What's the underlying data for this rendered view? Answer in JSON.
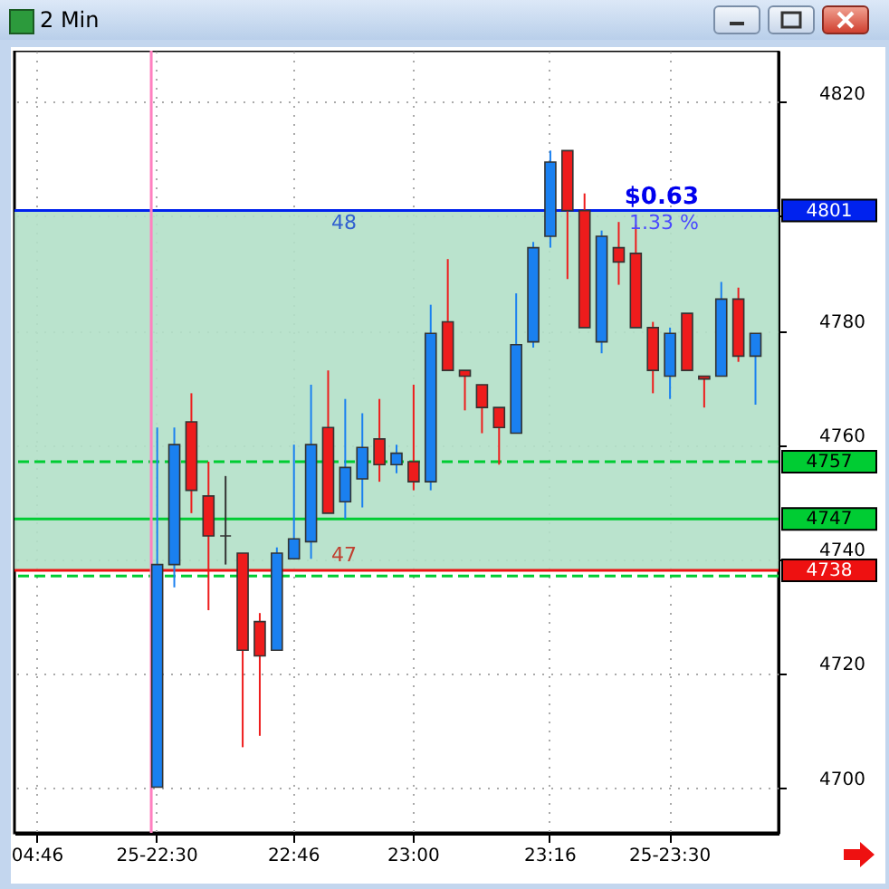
{
  "chart_data": {
    "type": "candlestick",
    "title": "2 Min",
    "categories": [
      "04:46",
      null,
      null,
      null,
      null,
      null,
      null,
      "25-22:30",
      null,
      null,
      null,
      null,
      null,
      null,
      null,
      "22:46",
      null,
      null,
      null,
      null,
      null,
      null,
      "23:00",
      null,
      null,
      null,
      null,
      null,
      null,
      null,
      "23:16",
      null,
      null,
      null,
      null,
      null,
      null,
      "25-23:30",
      null,
      null,
      null,
      null,
      null
    ],
    "ohlc": [
      null,
      null,
      null,
      null,
      null,
      null,
      null,
      [
        4700,
        4763,
        4700,
        4739
      ],
      [
        4739,
        4763,
        4735,
        4760
      ],
      [
        4764,
        4769,
        4748,
        4752
      ],
      [
        4751,
        4757,
        4731,
        4744
      ],
      [
        4744,
        4754.5,
        4739,
        4744
      ],
      [
        4741,
        4741,
        4707,
        4724
      ],
      [
        4729,
        4730.5,
        4709,
        4723
      ],
      [
        4724,
        4742,
        4724,
        4741
      ],
      [
        4740,
        4760,
        4740,
        4743.5
      ],
      [
        4743,
        4770.5,
        4740,
        4760
      ],
      [
        4763,
        4773,
        4748,
        4748
      ],
      [
        4750,
        4768,
        4747,
        4756
      ],
      [
        4754,
        4765.5,
        4749,
        4759.5
      ],
      [
        4761,
        4768,
        4753.5,
        4756.5
      ],
      [
        4756.5,
        4760,
        4755,
        4758.5
      ],
      [
        4757,
        4770.5,
        4752,
        4753.5
      ],
      [
        4753.5,
        4784.5,
        4752,
        4779.5
      ],
      [
        4781.5,
        4792.5,
        4773,
        4773
      ],
      [
        4773,
        4773,
        4766,
        4772
      ],
      [
        4770.5,
        4770.5,
        4762,
        4766.5
      ],
      [
        4766.5,
        4766.5,
        4756.5,
        4763
      ],
      [
        4762,
        4786.5,
        4762,
        4777.5
      ],
      [
        4778,
        4795.5,
        4777,
        4794.5
      ],
      [
        4796.5,
        4811.5,
        4794.5,
        4809.5
      ],
      [
        4811.5,
        4811.5,
        4789,
        4801
      ],
      [
        4801,
        4804,
        4780.5,
        4780.5
      ],
      [
        4778,
        4797.5,
        4776,
        4796.5
      ],
      [
        4794.5,
        4799,
        4788,
        4792
      ],
      [
        4793.5,
        4798.5,
        4780.5,
        4780.5
      ],
      [
        4780.5,
        4781.5,
        4769,
        4773
      ],
      [
        4772,
        4780.5,
        4768,
        4779.5
      ],
      [
        4783,
        4783,
        4773,
        4773
      ],
      [
        4772,
        4772,
        4766.5,
        4771.5
      ],
      [
        4772,
        4788.5,
        4772,
        4785.5
      ],
      [
        4785.5,
        4787.5,
        4774.5,
        4775.5
      ],
      [
        4775.5,
        4779.5,
        4767,
        4779.5
      ]
    ],
    "colors": [
      null,
      null,
      null,
      null,
      null,
      null,
      null,
      "#1a80f0",
      "#1a80f0",
      "#ee1c1c",
      "#ee1c1c",
      "#333333",
      "#ee1c1c",
      "#ee1c1c",
      "#1a80f0",
      "#1a80f0",
      "#1a80f0",
      "#ee1c1c",
      "#1a80f0",
      "#1a80f0",
      "#ee1c1c",
      "#1a80f0",
      "#ee1c1c",
      "#1a80f0",
      "#ee1c1c",
      "#ee1c1c",
      "#ee1c1c",
      "#ee1c1c",
      "#1a80f0",
      "#1a80f0",
      "#1a80f0",
      "#ee1c1c",
      "#ee1c1c",
      "#1a80f0",
      "#ee1c1c",
      "#ee1c1c",
      "#ee1c1c",
      "#1a80f0",
      "#ee1c1c",
      "#ee1c1c",
      "#1a80f0",
      "#ee1c1c",
      "#1a80f0"
    ],
    "ylim": [
      4692,
      4829
    ],
    "yticks": [
      4700,
      4720,
      4740,
      4760,
      4780,
      {
        "value": 4800,
        "label": null
      },
      4820
    ],
    "grid": true,
    "bands": [
      {
        "axis": "y",
        "from": 4738,
        "to": 4801,
        "color": "#b3e0c8"
      }
    ],
    "ref_lines": [
      {
        "axis": "y",
        "value": 4801,
        "label": "4801",
        "color": "#0022ee",
        "line_style": "solid"
      },
      {
        "axis": "y",
        "value": 4757,
        "label": "4757",
        "color": "#00cc33",
        "line_style": "dashed"
      },
      {
        "axis": "y",
        "value": 4747,
        "label": "4747",
        "color": "#00cc33",
        "line_style": "solid"
      },
      {
        "axis": "y",
        "value": 4737,
        "color": "#00cc33",
        "line_style": "dashed"
      },
      {
        "axis": "y",
        "value": 4738,
        "label": "4738",
        "color": "#ee1111",
        "line_style": "solid"
      },
      {
        "axis": "x",
        "value": "25-22:30",
        "color": "#ff80c0",
        "line_style": "solid"
      }
    ],
    "annotations": [
      {
        "text": "$0.63",
        "y": 4801
      },
      {
        "text": "1.33 %",
        "y": 4801
      },
      {
        "text": "48",
        "y": 4801
      },
      {
        "text": "47",
        "y": 4738
      }
    ]
  }
}
